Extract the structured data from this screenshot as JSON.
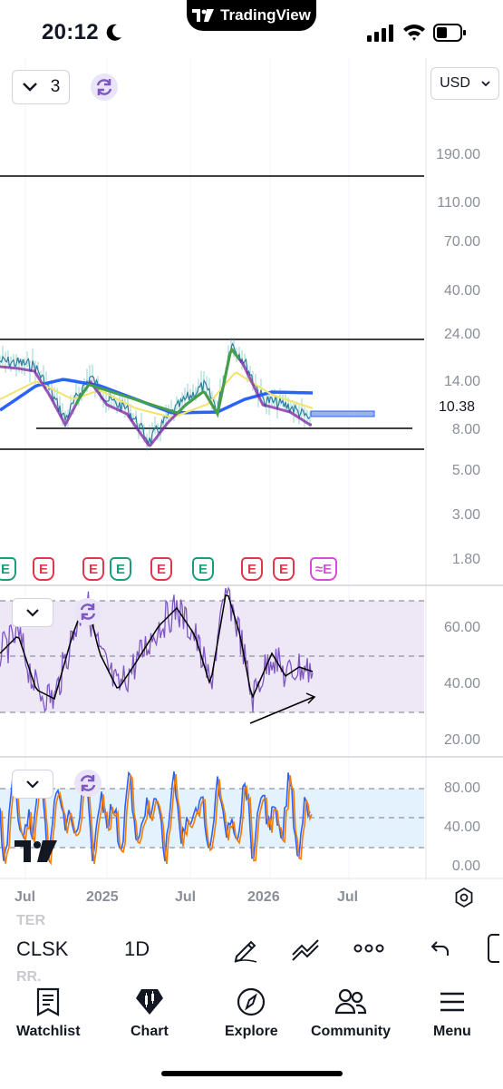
{
  "status_bar": {
    "time": "20:12",
    "app_pill": "TradingView"
  },
  "chart_top": {
    "interval_count": "3",
    "currency": "USD"
  },
  "price_axis": {
    "labels": [
      "190.00",
      "110.00",
      "70.00",
      "40.00",
      "24.00",
      "14.00",
      "8.00",
      "5.00",
      "3.00",
      "1.80"
    ],
    "current_price": "10.38"
  },
  "earnings_markers": [
    {
      "type": "green",
      "label": "E"
    },
    {
      "type": "red",
      "label": "E"
    },
    {
      "type": "red",
      "label": "E"
    },
    {
      "type": "green",
      "label": "E"
    },
    {
      "type": "red",
      "label": "E"
    },
    {
      "type": "green",
      "label": "E"
    },
    {
      "type": "red",
      "label": "E"
    },
    {
      "type": "red",
      "label": "E"
    },
    {
      "type": "purple",
      "label": "≈E"
    }
  ],
  "rsi_axis": {
    "labels": [
      "60.00",
      "40.00",
      "20.00"
    ]
  },
  "stoch_axis": {
    "labels": [
      "80.00",
      "40.00",
      "0.00"
    ]
  },
  "time_axis": {
    "labels": [
      "Jul",
      "2025",
      "Jul",
      "2026",
      "Jul"
    ]
  },
  "toolbar": {
    "symbol": "CLSK",
    "interval": "1D",
    "ghost_1": "TER",
    "ghost_2": "RR."
  },
  "bottom_nav": {
    "items": [
      {
        "label": "Watchlist",
        "icon": "watchlist-icon"
      },
      {
        "label": "Chart",
        "icon": "chart-icon"
      },
      {
        "label": "Explore",
        "icon": "compass-icon"
      },
      {
        "label": "Community",
        "icon": "community-icon"
      },
      {
        "label": "Menu",
        "icon": "hamburger-icon"
      }
    ]
  },
  "colors": {
    "rsi_band": "#ede7f6",
    "stoch_band": "#e3f2fd",
    "rsi_line": "#7e57c2",
    "stoch_k": "#2962ff",
    "stoch_d": "#f57c00",
    "ma_blue": "#2962ff",
    "ma_yellow": "#f2e36b",
    "ma_purple": "#7b1fa2",
    "ma_green": "#43a047"
  }
}
